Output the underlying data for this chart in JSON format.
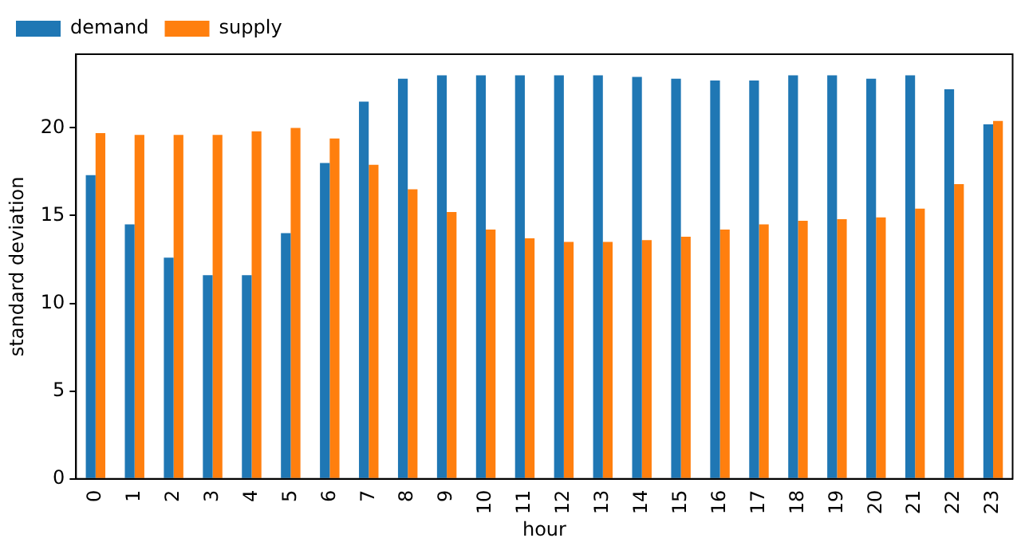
{
  "chart_data": {
    "type": "bar",
    "xlabel": "hour",
    "ylabel": "standard deviation",
    "categories": [
      "0",
      "1",
      "2",
      "3",
      "4",
      "5",
      "6",
      "7",
      "8",
      "9",
      "10",
      "11",
      "12",
      "13",
      "14",
      "15",
      "16",
      "17",
      "18",
      "19",
      "20",
      "21",
      "22",
      "23"
    ],
    "series": [
      {
        "name": "demand",
        "color": "#1f77b4",
        "values": [
          17.3,
          14.5,
          12.6,
          11.6,
          11.6,
          14.0,
          18.0,
          21.5,
          22.8,
          23.0,
          23.0,
          23.0,
          23.0,
          23.0,
          22.9,
          22.8,
          22.7,
          22.7,
          23.0,
          23.0,
          22.8,
          23.0,
          22.2,
          20.2
        ]
      },
      {
        "name": "supply",
        "color": "#ff7f0e",
        "values": [
          19.7,
          19.6,
          19.6,
          19.6,
          19.8,
          20.0,
          19.4,
          17.9,
          16.5,
          15.2,
          14.2,
          13.7,
          13.5,
          13.5,
          13.6,
          13.8,
          14.2,
          14.5,
          14.7,
          14.8,
          14.9,
          15.4,
          16.8,
          20.4
        ]
      }
    ],
    "ylim": [
      0,
      24.2
    ],
    "yticks": [
      0,
      5,
      10,
      15,
      20
    ],
    "grid": false,
    "legend": "top left"
  }
}
